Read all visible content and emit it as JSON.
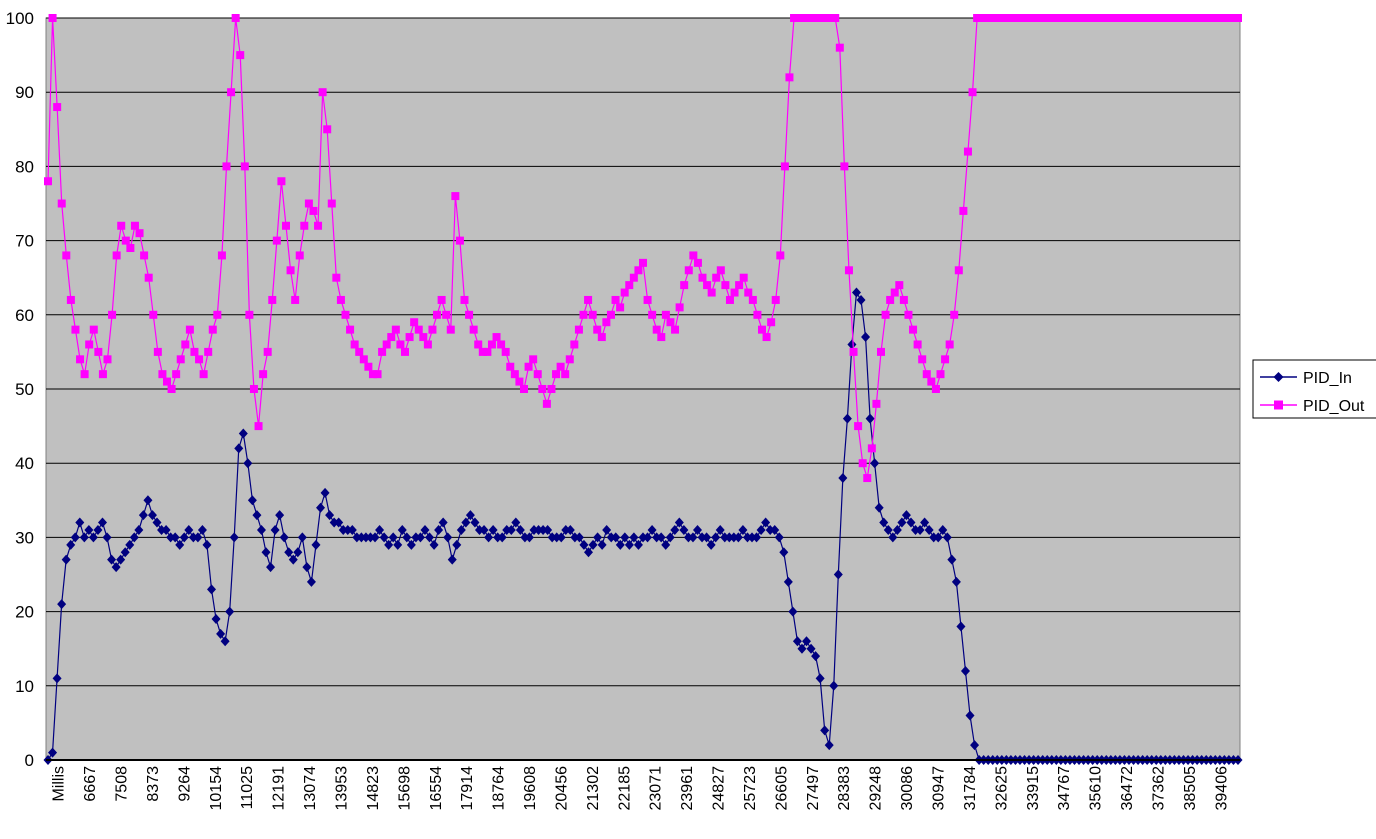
{
  "chart_data": {
    "type": "line",
    "title": "",
    "xlabel": "",
    "ylabel": "",
    "ylim": [
      0,
      100
    ],
    "yticks": [
      0,
      10,
      20,
      30,
      40,
      50,
      60,
      70,
      80,
      90,
      100
    ],
    "x_tick_labels": [
      "Millis",
      "6667",
      "7508",
      "8373",
      "9264",
      "10154",
      "11025",
      "12191",
      "13074",
      "13953",
      "14823",
      "15698",
      "16554",
      "17914",
      "18764",
      "19608",
      "20456",
      "21302",
      "22185",
      "23071",
      "23961",
      "24827",
      "25723",
      "26605",
      "27497",
      "28383",
      "29248",
      "30086",
      "30947",
      "31784",
      "32625",
      "33915",
      "34767",
      "35610",
      "36472",
      "37362",
      "38505",
      "39406"
    ],
    "grid": "horizontal",
    "plot_background": "#C0C0C0",
    "legend_position": "right",
    "series": [
      {
        "name": "PID_In",
        "color": "#000080",
        "marker": "diamond",
        "values": [
          0,
          1,
          11,
          21,
          27,
          29,
          30,
          32,
          30,
          31,
          30,
          31,
          32,
          30,
          27,
          26,
          27,
          28,
          29,
          30,
          31,
          33,
          35,
          33,
          32,
          31,
          31,
          30,
          30,
          29,
          30,
          31,
          30,
          30,
          31,
          29,
          23,
          19,
          17,
          16,
          20,
          30,
          42,
          44,
          40,
          35,
          33,
          31,
          28,
          26,
          31,
          33,
          30,
          28,
          27,
          28,
          30,
          26,
          24,
          29,
          34,
          36,
          33,
          32,
          32,
          31,
          31,
          31,
          30,
          30,
          30,
          30,
          30,
          31,
          30,
          29,
          30,
          29,
          31,
          30,
          29,
          30,
          30,
          31,
          30,
          29,
          31,
          32,
          30,
          27,
          29,
          31,
          32,
          33,
          32,
          31,
          31,
          30,
          31,
          30,
          30,
          31,
          31,
          32,
          31,
          30,
          30,
          31,
          31,
          31,
          31,
          30,
          30,
          30,
          31,
          31,
          30,
          30,
          29,
          28,
          29,
          30,
          29,
          31,
          30,
          30,
          29,
          30,
          29,
          30,
          29,
          30,
          30,
          31,
          30,
          30,
          29,
          30,
          31,
          32,
          31,
          30,
          30,
          31,
          30,
          30,
          29,
          30,
          31,
          30,
          30,
          30,
          30,
          31,
          30,
          30,
          30,
          31,
          32,
          31,
          31,
          30,
          28,
          24,
          20,
          16,
          15,
          16,
          15,
          14,
          11,
          4,
          2,
          10,
          25,
          38,
          46,
          56,
          63,
          62,
          57,
          46,
          40,
          34,
          32,
          31,
          30,
          31,
          32,
          33,
          32,
          31,
          31,
          32,
          31,
          30,
          30,
          31,
          30,
          27,
          24,
          18,
          12,
          6,
          2,
          0,
          0,
          0,
          0,
          0,
          0,
          0,
          0,
          0,
          0,
          0,
          0,
          0,
          0,
          0,
          0,
          0,
          0,
          0,
          0,
          0,
          0,
          0,
          0,
          0,
          0,
          0,
          0,
          0,
          0,
          0,
          0,
          0,
          0,
          0,
          0,
          0,
          0,
          0,
          0,
          0,
          0,
          0,
          0,
          0,
          0,
          0,
          0,
          0,
          0,
          0,
          0,
          0,
          0,
          0,
          0,
          0,
          0
        ]
      },
      {
        "name": "PID_Out",
        "color": "#FF00FF",
        "marker": "square",
        "values": [
          78,
          100,
          88,
          75,
          68,
          62,
          58,
          54,
          52,
          56,
          58,
          55,
          52,
          54,
          60,
          68,
          72,
          70,
          69,
          72,
          71,
          68,
          65,
          60,
          55,
          52,
          51,
          50,
          52,
          54,
          56,
          58,
          55,
          54,
          52,
          55,
          58,
          60,
          68,
          80,
          90,
          100,
          95,
          80,
          60,
          50,
          45,
          52,
          55,
          62,
          70,
          78,
          72,
          66,
          62,
          68,
          72,
          75,
          74,
          72,
          90,
          85,
          75,
          65,
          62,
          60,
          58,
          56,
          55,
          54,
          53,
          52,
          52,
          55,
          56,
          57,
          58,
          56,
          55,
          57,
          59,
          58,
          57,
          56,
          58,
          60,
          62,
          60,
          58,
          76,
          70,
          62,
          60,
          58,
          56,
          55,
          55,
          56,
          57,
          56,
          55,
          53,
          52,
          51,
          50,
          53,
          54,
          52,
          50,
          48,
          50,
          52,
          53,
          52,
          54,
          56,
          58,
          60,
          62,
          60,
          58,
          57,
          59,
          60,
          62,
          61,
          63,
          64,
          65,
          66,
          67,
          62,
          60,
          58,
          57,
          60,
          59,
          58,
          61,
          64,
          66,
          68,
          67,
          65,
          64,
          63,
          65,
          66,
          64,
          62,
          63,
          64,
          65,
          63,
          62,
          60,
          58,
          57,
          59,
          62,
          68,
          80,
          92,
          100,
          100,
          100,
          100,
          100,
          100,
          100,
          100,
          100,
          100,
          96,
          80,
          66,
          55,
          45,
          40,
          38,
          42,
          48,
          55,
          60,
          62,
          63,
          64,
          62,
          60,
          58,
          56,
          54,
          52,
          51,
          50,
          52,
          54,
          56,
          60,
          66,
          74,
          82,
          90,
          100,
          100,
          100,
          100,
          100,
          100,
          100,
          100,
          100,
          100,
          100,
          100,
          100,
          100,
          100,
          100,
          100,
          100,
          100,
          100,
          100,
          100,
          100,
          100,
          100,
          100,
          100,
          100,
          100,
          100,
          100,
          100,
          100,
          100,
          100,
          100,
          100,
          100,
          100,
          100,
          100,
          100,
          100,
          100,
          100,
          100,
          100,
          100,
          100,
          100,
          100,
          100,
          100,
          100,
          100,
          100,
          100,
          100
        ]
      }
    ]
  }
}
